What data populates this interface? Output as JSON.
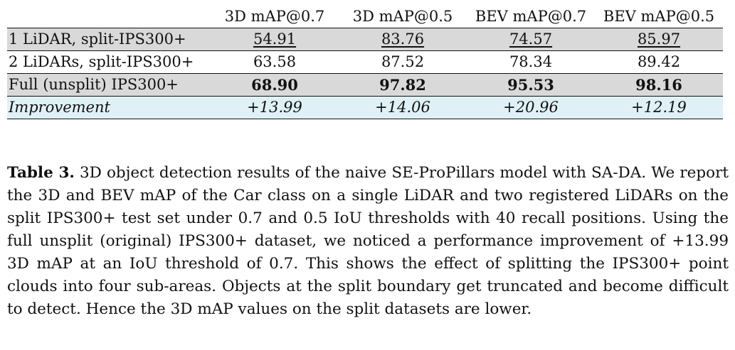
{
  "table": {
    "headers": [
      "",
      "3D mAP@0.7",
      "3D mAP@0.5",
      "BEV mAP@0.7",
      "BEV mAP@0.5"
    ],
    "rows": [
      {
        "label": "1 LiDAR, split-IPS300+",
        "values": [
          "54.91",
          "83.76",
          "74.57",
          "85.97"
        ]
      },
      {
        "label": "2 LiDARs, split-IPS300+",
        "values": [
          "63.58",
          "87.52",
          "78.34",
          "89.42"
        ]
      },
      {
        "label": "Full (unsplit) IPS300+",
        "values": [
          "68.90",
          "97.82",
          "95.53",
          "98.16"
        ]
      },
      {
        "label": "Improvement",
        "values": [
          "+13.99",
          "+14.06",
          "+20.96",
          "+12.19"
        ]
      }
    ]
  },
  "caption": {
    "label": "Table 3.",
    "text": "3D object detection results of the naive SE-ProPillars model with SA-DA. We report the 3D and BEV mAP of the Car class on a single LiDAR and two registered LiDARs on the split IPS300+ test set under 0.7 and 0.5 IoU thresholds with 40 recall positions. Using the full unsplit (original) IPS300+ dataset, we noticed a performance improvement of +13.99 3D mAP at an IoU threshold of 0.7. This shows the effect of splitting the IPS300+ point clouds into four sub-areas. Objects at the split boundary get truncated and become difficult to detect. Hence the 3D mAP values on the split datasets are lower."
  }
}
